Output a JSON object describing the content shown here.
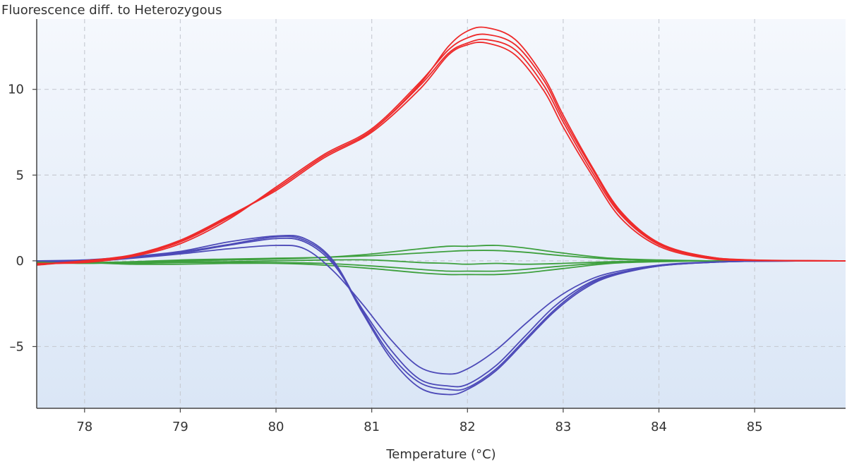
{
  "chart_data": {
    "type": "line",
    "title": "",
    "ylabel": "Fluorescence diff. to Heterozygous",
    "xlabel": "Temperature (°C)",
    "xlim": [
      77.5,
      85.95
    ],
    "ylim": [
      -8.6,
      14.1
    ],
    "x_ticks": [
      78,
      79,
      80,
      81,
      82,
      83,
      84,
      85
    ],
    "x_tick_labels": [
      "78",
      "79",
      "80",
      "81",
      "82",
      "83",
      "84",
      "85"
    ],
    "y_ticks": [
      10,
      5,
      0,
      -5
    ],
    "y_tick_labels": [
      "10",
      "5",
      "0",
      "–5"
    ],
    "grid": true,
    "colors": {
      "red": "#ee2a2a",
      "blue": "#4d4ab8",
      "green": "#3ea03e",
      "bg_top": "#f5f8fd",
      "bg_bottom": "#dae6f6"
    },
    "series": [
      {
        "name": "red-1",
        "color": "#ee2a2a",
        "x": [
          77.5,
          78,
          78.5,
          79,
          79.5,
          80,
          80.5,
          81,
          81.5,
          81.8,
          82,
          82.2,
          82.5,
          82.8,
          83,
          83.3,
          83.6,
          84,
          84.5,
          85,
          85.95
        ],
        "y": [
          -0.2,
          -0.05,
          0.3,
          1.1,
          2.5,
          4.2,
          6.1,
          7.6,
          10.2,
          12.1,
          12.7,
          12.9,
          12.3,
          10.2,
          8.1,
          5.2,
          2.7,
          0.95,
          0.2,
          0.03,
          0
        ]
      },
      {
        "name": "red-2",
        "color": "#ee2a2a",
        "x": [
          77.5,
          78,
          78.5,
          79,
          79.5,
          80,
          80.5,
          81,
          81.5,
          81.8,
          82,
          82.2,
          82.5,
          82.8,
          83,
          83.3,
          83.6,
          84,
          84.5,
          85,
          85.95
        ],
        "y": [
          -0.25,
          0,
          0.35,
          1.2,
          2.6,
          4.1,
          6.0,
          7.5,
          10.0,
          12.0,
          12.6,
          12.7,
          12.0,
          9.9,
          7.8,
          5.0,
          2.5,
          0.85,
          0.15,
          0.02,
          0
        ]
      },
      {
        "name": "red-3",
        "color": "#ee2a2a",
        "x": [
          77.5,
          78,
          78.5,
          79,
          79.5,
          80,
          80.5,
          81,
          81.5,
          81.8,
          82,
          82.2,
          82.5,
          82.8,
          83,
          83.3,
          83.6,
          84,
          84.5,
          85,
          85.95
        ],
        "y": [
          -0.15,
          -0.1,
          0.25,
          1.0,
          2.4,
          4.3,
          6.2,
          7.7,
          10.4,
          12.3,
          13.0,
          13.2,
          12.6,
          10.5,
          8.3,
          5.4,
          2.8,
          1.0,
          0.25,
          0.04,
          0
        ]
      },
      {
        "name": "red-4",
        "color": "#ee2a2a",
        "x": [
          77.5,
          78,
          78.5,
          79,
          79.5,
          80,
          80.5,
          81,
          81.5,
          81.8,
          82,
          82.2,
          82.5,
          82.8,
          83,
          83.3,
          83.6,
          84,
          84.5,
          85,
          85.95
        ],
        "y": [
          -0.2,
          0,
          0.3,
          1.15,
          2.55,
          4.2,
          6.1,
          7.6,
          10.3,
          12.5,
          13.4,
          13.6,
          12.9,
          10.7,
          8.5,
          5.5,
          2.9,
          1.05,
          0.25,
          0.05,
          0
        ]
      },
      {
        "name": "blue-1",
        "color": "#4d4ab8",
        "x": [
          77.5,
          78,
          78.5,
          79,
          79.5,
          80,
          80.3,
          80.6,
          80.9,
          81.2,
          81.5,
          81.8,
          82,
          82.3,
          82.6,
          82.9,
          83.2,
          83.5,
          84,
          84.5,
          85,
          85.95
        ],
        "y": [
          0,
          -0.05,
          0.15,
          0.4,
          0.7,
          0.9,
          0.7,
          -0.6,
          -2.5,
          -4.6,
          -6.2,
          -6.6,
          -6.3,
          -5.2,
          -3.7,
          -2.3,
          -1.3,
          -0.7,
          -0.25,
          -0.08,
          -0.02,
          0
        ]
      },
      {
        "name": "blue-2",
        "color": "#4d4ab8",
        "x": [
          77.5,
          78,
          78.5,
          79,
          79.5,
          80,
          80.3,
          80.6,
          80.9,
          81.2,
          81.5,
          81.8,
          82,
          82.3,
          82.6,
          82.9,
          83.2,
          83.5,
          84,
          84.5,
          85,
          85.95
        ],
        "y": [
          0,
          0,
          0.2,
          0.45,
          0.9,
          1.3,
          1.1,
          -0.2,
          -2.8,
          -5.2,
          -6.9,
          -7.3,
          -7.2,
          -6.1,
          -4.4,
          -2.7,
          -1.5,
          -0.8,
          -0.3,
          -0.1,
          -0.02,
          0
        ]
      },
      {
        "name": "blue-3",
        "color": "#4d4ab8",
        "x": [
          77.5,
          78,
          78.5,
          79,
          79.5,
          80,
          80.3,
          80.6,
          80.9,
          81.2,
          81.5,
          81.8,
          82,
          82.3,
          82.6,
          82.9,
          83.2,
          83.5,
          84,
          84.5,
          85,
          85.95
        ],
        "y": [
          0,
          0.05,
          0.25,
          0.55,
          1.1,
          1.45,
          1.3,
          0,
          -2.9,
          -5.5,
          -7.1,
          -7.5,
          -7.4,
          -6.3,
          -4.6,
          -2.9,
          -1.6,
          -0.85,
          -0.3,
          -0.1,
          -0.02,
          0
        ]
      },
      {
        "name": "blue-4",
        "color": "#4d4ab8",
        "x": [
          77.5,
          78,
          78.5,
          79,
          79.5,
          80,
          80.3,
          80.6,
          80.9,
          81.2,
          81.5,
          81.8,
          82,
          82.3,
          82.6,
          82.9,
          83.2,
          83.5,
          84,
          84.5,
          85,
          85.95
        ],
        "y": [
          0,
          -0.05,
          0.2,
          0.5,
          0.95,
          1.4,
          1.2,
          -0.1,
          -3.0,
          -5.7,
          -7.4,
          -7.8,
          -7.5,
          -6.4,
          -4.7,
          -3.0,
          -1.7,
          -0.9,
          -0.3,
          -0.1,
          -0.02,
          0
        ]
      },
      {
        "name": "green-1",
        "color": "#3ea03e",
        "x": [
          77.5,
          78,
          78.5,
          79,
          79.5,
          80,
          80.5,
          81,
          81.5,
          81.8,
          82,
          82.3,
          82.6,
          83,
          83.5,
          84,
          84.5,
          85,
          85.95
        ],
        "y": [
          -0.1,
          -0.15,
          -0.1,
          0,
          0.05,
          0.1,
          0.2,
          0.4,
          0.7,
          0.85,
          0.85,
          0.9,
          0.75,
          0.45,
          0.15,
          0.05,
          0,
          0,
          0
        ]
      },
      {
        "name": "green-2",
        "color": "#3ea03e",
        "x": [
          77.5,
          78,
          78.5,
          79,
          79.5,
          80,
          80.5,
          81,
          81.5,
          81.8,
          82,
          82.3,
          82.6,
          83,
          83.5,
          84,
          84.5,
          85,
          85.95
        ],
        "y": [
          -0.05,
          -0.1,
          -0.05,
          0.05,
          0.1,
          0.15,
          0.2,
          0.3,
          0.45,
          0.55,
          0.6,
          0.6,
          0.5,
          0.3,
          0.1,
          0.03,
          0,
          0,
          0
        ]
      },
      {
        "name": "green-3",
        "color": "#3ea03e",
        "x": [
          77.5,
          78,
          78.5,
          79,
          79.5,
          80,
          80.5,
          81,
          81.5,
          81.8,
          82,
          82.3,
          82.6,
          83,
          83.5,
          84,
          84.5,
          85,
          85.95
        ],
        "y": [
          0,
          -0.1,
          -0.1,
          -0.05,
          -0.05,
          0,
          0.05,
          0.05,
          -0.1,
          -0.15,
          -0.2,
          -0.15,
          -0.2,
          -0.15,
          -0.05,
          0,
          0,
          0,
          0
        ]
      },
      {
        "name": "green-4",
        "color": "#3ea03e",
        "x": [
          77.5,
          78,
          78.5,
          79,
          79.5,
          80,
          80.5,
          81,
          81.5,
          81.8,
          82,
          82.3,
          82.6,
          83,
          83.5,
          84,
          84.5,
          85,
          85.95
        ],
        "y": [
          -0.1,
          -0.1,
          -0.15,
          -0.1,
          -0.1,
          -0.1,
          -0.15,
          -0.3,
          -0.5,
          -0.6,
          -0.6,
          -0.6,
          -0.5,
          -0.3,
          -0.1,
          -0.03,
          0,
          0,
          0
        ]
      },
      {
        "name": "green-5",
        "color": "#3ea03e",
        "x": [
          77.5,
          78,
          78.5,
          79,
          79.5,
          80,
          80.5,
          81,
          81.5,
          81.8,
          82,
          82.3,
          82.6,
          83,
          83.5,
          84,
          84.5,
          85,
          85.95
        ],
        "y": [
          -0.05,
          -0.1,
          -0.2,
          -0.2,
          -0.15,
          -0.15,
          -0.25,
          -0.45,
          -0.7,
          -0.8,
          -0.8,
          -0.8,
          -0.7,
          -0.45,
          -0.15,
          -0.05,
          0,
          0,
          0
        ]
      }
    ]
  }
}
